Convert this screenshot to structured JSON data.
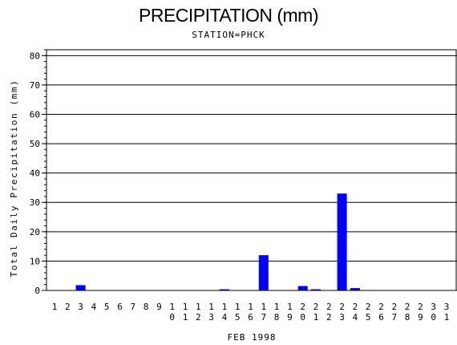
{
  "chart_data": {
    "type": "bar",
    "title": "PRECIPITATION (mm)",
    "subtitle": "STATION=PHCK",
    "xlabel": "FEB 1998",
    "ylabel": "Total Daily Precipitation (mm)",
    "ylim": [
      0,
      82
    ],
    "yticks": [
      0,
      10,
      20,
      30,
      40,
      50,
      60,
      70,
      80
    ],
    "grid": true,
    "bar_color": "#0000ff",
    "categories": [
      "1",
      "2",
      "3",
      "4",
      "5",
      "6",
      "7",
      "8",
      "9",
      "10",
      "11",
      "12",
      "13",
      "14",
      "15",
      "16",
      "17",
      "18",
      "19",
      "20",
      "21",
      "22",
      "23",
      "24",
      "25",
      "26",
      "27",
      "28",
      "29",
      "30",
      "31"
    ],
    "values": [
      0,
      0,
      1.8,
      0,
      0,
      0,
      0,
      0,
      0,
      0,
      0,
      0,
      0,
      0.4,
      0,
      0,
      12,
      0,
      0,
      1.5,
      0.4,
      0,
      33,
      0.8,
      0,
      0,
      0,
      0,
      0,
      0,
      0
    ]
  }
}
